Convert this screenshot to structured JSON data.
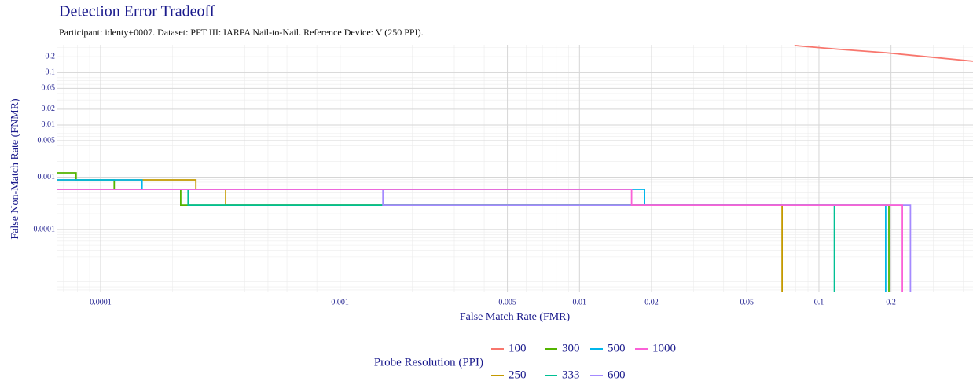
{
  "chart_data": {
    "type": "step-line",
    "title": "Detection Error Tradeoff",
    "subtitle": "Participant: identy+0007. Dataset: PFT III: IARPA Nail-to-Nail. Reference Device: V (250 PPI).",
    "x_label": "False Match Rate (FMR)",
    "y_label": "False Non-Match Rate (FNMR)",
    "legend_title": "Probe Resolution (PPI)",
    "log_x": true,
    "log_y": true,
    "grid": true,
    "legend_position": "bottom",
    "xlim": [
      6.6e-05,
      0.44
    ],
    "ylim": [
      6.3e-06,
      0.34
    ],
    "xticks": [
      0.0001,
      0.001,
      0.005,
      0.01,
      0.02,
      0.05,
      0.1,
      0.2
    ],
    "yticks": [
      0.0001,
      0.001,
      0.005,
      0.01,
      0.02,
      0.05,
      0.1,
      0.2
    ],
    "series": [
      {
        "name": "100",
        "color": "#F8766D",
        "x": [
          0.079,
          0.12,
          0.19,
          0.44
        ],
        "values": [
          0.33,
          0.28,
          0.24,
          0.165
        ]
      },
      {
        "name": "250",
        "color": "#C49A00",
        "x": [
          6e-05,
          0.00025,
          0.00025,
          0.000333,
          0.000333,
          0.0702,
          0.0702
        ],
        "values": [
          0.000885,
          0.000885,
          0.000585,
          0.000585,
          0.000292,
          0.000292,
          1e-06
        ]
      },
      {
        "name": "300",
        "color": "#53B400",
        "x": [
          6e-05,
          7.9e-05,
          7.9e-05,
          0.000114,
          0.000114,
          0.000216,
          0.000216,
          0.196,
          0.196
        ],
        "values": [
          0.00121,
          0.00121,
          0.000885,
          0.000885,
          0.000585,
          0.000585,
          0.000292,
          0.000292,
          1e-06
        ]
      },
      {
        "name": "333",
        "color": "#00C094",
        "x": [
          6e-05,
          0.000232,
          0.000232,
          0.116,
          0.116
        ],
        "values": [
          0.000585,
          0.000585,
          0.000292,
          0.000292,
          1e-06
        ]
      },
      {
        "name": "500",
        "color": "#00B6EB",
        "x": [
          6e-05,
          0.000149,
          0.000149,
          0.0187,
          0.0187,
          0.19,
          0.19
        ],
        "values": [
          0.000885,
          0.000885,
          0.000585,
          0.000585,
          0.000292,
          0.000292,
          1e-06
        ]
      },
      {
        "name": "600",
        "color": "#A58AFF",
        "x": [
          6e-05,
          0.00151,
          0.00151,
          0.241,
          0.241
        ],
        "values": [
          0.000585,
          0.000585,
          0.000292,
          0.000292,
          1e-06
        ]
      },
      {
        "name": "1000",
        "color": "#FB61D7",
        "x": [
          6e-05,
          0.0165,
          0.0165,
          0.223,
          0.223
        ],
        "values": [
          0.000585,
          0.000585,
          0.000292,
          0.000292,
          1e-06
        ]
      }
    ]
  }
}
